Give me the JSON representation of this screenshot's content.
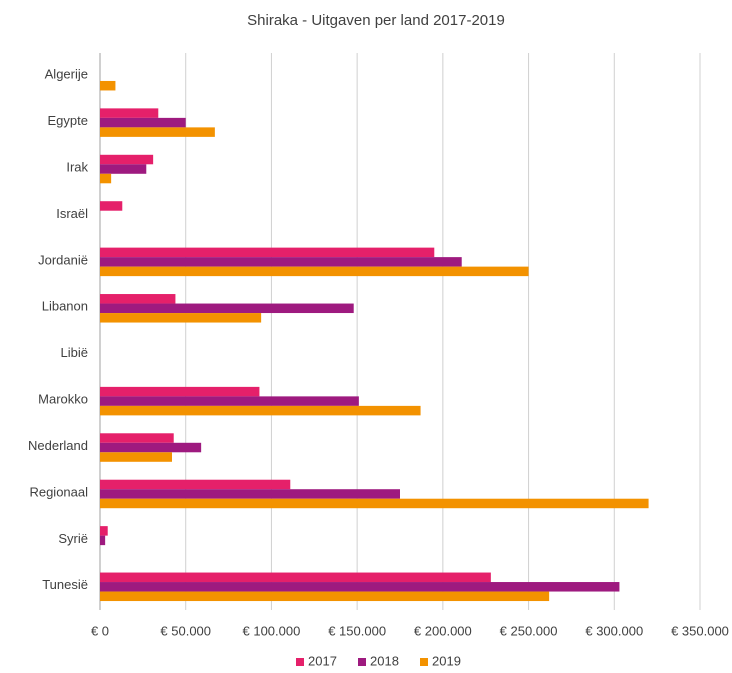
{
  "chart_data": {
    "type": "bar",
    "orientation": "horizontal",
    "title": "Shiraka - Uitgaven per land 2017-2019",
    "categories": [
      "Algerije",
      "Egypte",
      "Irak",
      "Israël",
      "Jordanië",
      "Libanon",
      "Libië",
      "Marokko",
      "Nederland",
      "Regionaal",
      "Syrië",
      "Tunesië"
    ],
    "series": [
      {
        "name": "2017",
        "color": "#e5206a",
        "values": [
          0,
          34000,
          31000,
          13000,
          195000,
          44000,
          0,
          93000,
          43000,
          111000,
          4500,
          228000
        ]
      },
      {
        "name": "2018",
        "color": "#9e1a7f",
        "values": [
          0,
          50000,
          27000,
          0,
          211000,
          148000,
          0,
          151000,
          59000,
          175000,
          3000,
          303000
        ]
      },
      {
        "name": "2019",
        "color": "#f39200",
        "values": [
          9000,
          67000,
          6500,
          0,
          250000,
          94000,
          0,
          187000,
          42000,
          320000,
          0,
          262000
        ]
      }
    ],
    "xlim": [
      0,
      350000
    ],
    "xticks": [
      {
        "value": 0,
        "label": "€ 0"
      },
      {
        "value": 50000,
        "label": "€ 50.000"
      },
      {
        "value": 100000,
        "label": "€ 100.000"
      },
      {
        "value": 150000,
        "label": "€ 150.000"
      },
      {
        "value": 200000,
        "label": "€ 200.000"
      },
      {
        "value": 250000,
        "label": "€ 250.000"
      },
      {
        "value": 300000,
        "label": "€ 300.000"
      },
      {
        "value": 350000,
        "label": "€ 350.000"
      }
    ],
    "grid": true,
    "legend": "bottom"
  }
}
